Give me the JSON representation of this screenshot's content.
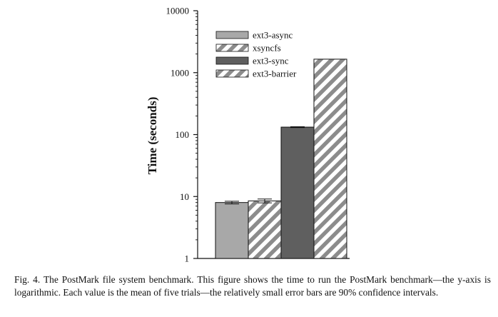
{
  "chart_data": {
    "type": "bar",
    "title": "",
    "xlabel": "",
    "ylabel": "Time (seconds)",
    "y_scale": "log",
    "ylim": [
      1,
      10000
    ],
    "y_ticks": [
      1,
      10,
      100,
      1000,
      10000
    ],
    "y_tick_labels": [
      "1",
      "10",
      "100",
      "1000",
      "10000"
    ],
    "grid": false,
    "legend_position": "top-left",
    "series": [
      {
        "name": "ext3-async",
        "value": 8.0,
        "error": 0.4,
        "fill": "solid",
        "color": "#a8a8a8"
      },
      {
        "name": "xsyncfs",
        "value": 8.5,
        "error": 0.6,
        "fill": "hatched",
        "color": "#8c8c8c"
      },
      {
        "name": "ext3-sync",
        "value": 132,
        "error": 2,
        "fill": "solid",
        "color": "#5f5f5f"
      },
      {
        "name": "ext3-barrier",
        "value": 1650,
        "error": 0,
        "fill": "hatched",
        "color": "#8c8c8c"
      }
    ]
  },
  "caption": {
    "text": "Fig. 4.  The PostMark file system benchmark. This figure shows the time to run the PostMark benchmark—the y-axis is logarithmic. Each value is the mean of five trials—the relatively small error bars are 90% confidence intervals."
  }
}
